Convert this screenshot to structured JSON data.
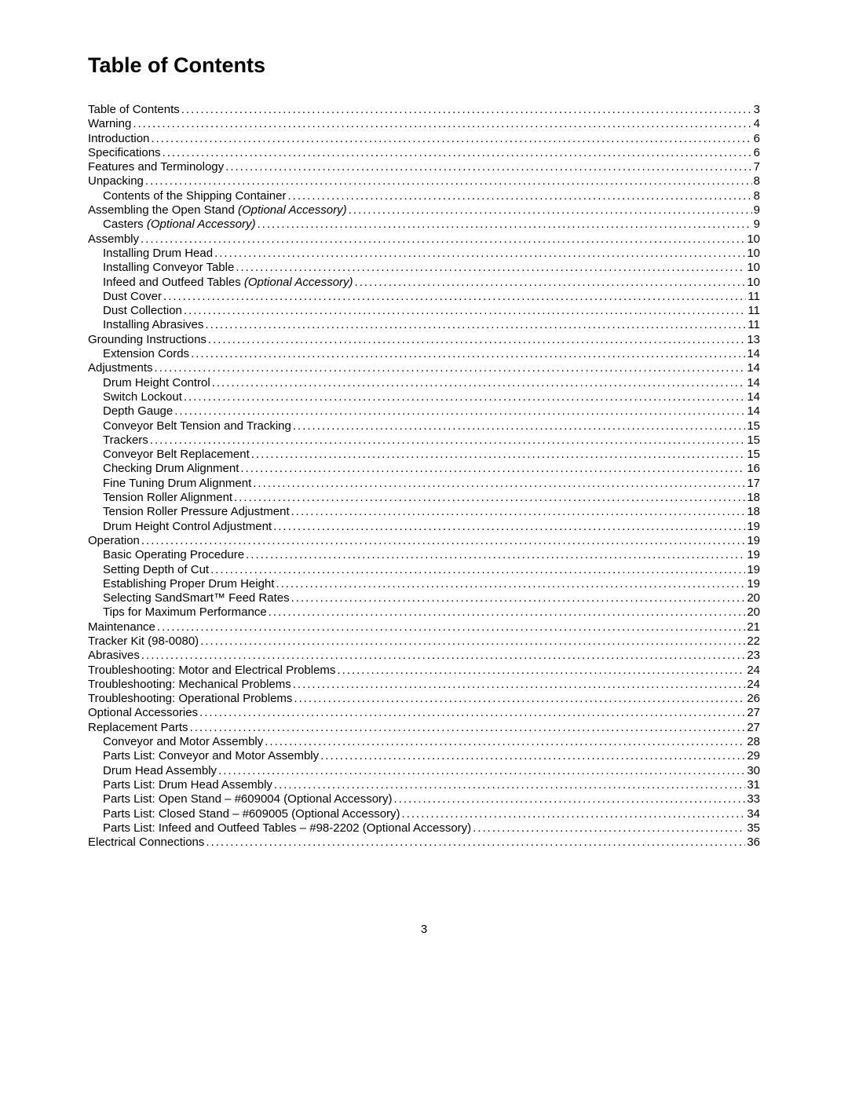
{
  "title": "Table of Contents",
  "pageNumber": "3",
  "entries": [
    {
      "label": "Table of Contents",
      "page": "3",
      "indent": 0
    },
    {
      "label": "Warning",
      "page": "4",
      "indent": 0
    },
    {
      "label": "Introduction",
      "page": "6",
      "indent": 0
    },
    {
      "label": "Specifications",
      "page": "6",
      "indent": 0
    },
    {
      "label": "Features and Terminology",
      "page": "7",
      "indent": 0
    },
    {
      "label": "Unpacking",
      "page": "8",
      "indent": 0
    },
    {
      "label": "Contents of the Shipping Container",
      "page": "8",
      "indent": 1
    },
    {
      "label": "Assembling the Open Stand",
      "italic": " (Optional Accessory)",
      "page": "9",
      "indent": 0
    },
    {
      "label": "Casters",
      "italic": " (Optional Accessory)",
      "page": "9",
      "indent": 1
    },
    {
      "label": "Assembly",
      "page": "10",
      "indent": 0
    },
    {
      "label": "Installing Drum Head",
      "page": "10",
      "indent": 1
    },
    {
      "label": "Installing Conveyor Table",
      "page": "10",
      "indent": 1
    },
    {
      "label": "Infeed and Outfeed Tables",
      "italic": " (Optional Accessory)",
      "page": "10",
      "indent": 1
    },
    {
      "label": "Dust Cover",
      "page": "11",
      "indent": 1
    },
    {
      "label": "Dust Collection",
      "page": "11",
      "indent": 1
    },
    {
      "label": "Installing Abrasives",
      "page": "11",
      "indent": 1
    },
    {
      "label": "Grounding Instructions",
      "page": "13",
      "indent": 0
    },
    {
      "label": "Extension Cords",
      "page": "14",
      "indent": 1
    },
    {
      "label": "Adjustments",
      "page": "14",
      "indent": 0
    },
    {
      "label": "Drum Height Control",
      "page": "14",
      "indent": 1
    },
    {
      "label": "Switch Lockout",
      "page": "14",
      "indent": 1
    },
    {
      "label": "Depth Gauge",
      "page": "14",
      "indent": 1
    },
    {
      "label": "Conveyor Belt Tension and Tracking",
      "page": "15",
      "indent": 1
    },
    {
      "label": "Trackers",
      "page": "15",
      "indent": 1
    },
    {
      "label": "Conveyor Belt Replacement",
      "page": "15",
      "indent": 1
    },
    {
      "label": "Checking Drum Alignment",
      "page": "16",
      "indent": 1
    },
    {
      "label": "Fine Tuning Drum Alignment",
      "page": "17",
      "indent": 1
    },
    {
      "label": "Tension Roller Alignment",
      "page": "18",
      "indent": 1
    },
    {
      "label": "Tension Roller Pressure Adjustment",
      "page": "18",
      "indent": 1
    },
    {
      "label": "Drum Height Control Adjustment",
      "page": "19",
      "indent": 1
    },
    {
      "label": "Operation",
      "page": "19",
      "indent": 0
    },
    {
      "label": "Basic Operating Procedure",
      "page": "19",
      "indent": 1
    },
    {
      "label": "Setting Depth of Cut",
      "page": "19",
      "indent": 1
    },
    {
      "label": "Establishing Proper Drum Height",
      "page": "19",
      "indent": 1
    },
    {
      "label": "Selecting SandSmart™ Feed Rates",
      "page": "20",
      "indent": 1
    },
    {
      "label": "Tips for Maximum Performance",
      "page": "20",
      "indent": 1
    },
    {
      "label": "Maintenance",
      "page": "21",
      "indent": 0
    },
    {
      "label": "Tracker Kit (98-0080)",
      "page": "22",
      "indent": 0
    },
    {
      "label": "Abrasives",
      "page": "23",
      "indent": 0
    },
    {
      "label": "Troubleshooting: Motor and Electrical Problems",
      "page": "24",
      "indent": 0
    },
    {
      "label": "Troubleshooting: Mechanical Problems",
      "page": "24",
      "indent": 0
    },
    {
      "label": "Troubleshooting: Operational Problems",
      "page": "26",
      "indent": 0
    },
    {
      "label": "Optional Accessories",
      "page": "27",
      "indent": 0
    },
    {
      "label": "Replacement Parts",
      "page": "27",
      "indent": 0
    },
    {
      "label": "Conveyor and Motor Assembly",
      "page": "28",
      "indent": 1
    },
    {
      "label": "Parts List: Conveyor and Motor Assembly",
      "page": "29",
      "indent": 1
    },
    {
      "label": "Drum Head Assembly",
      "page": "30",
      "indent": 1
    },
    {
      "label": "Parts List: Drum Head Assembly",
      "page": "31",
      "indent": 1
    },
    {
      "label": "Parts List: Open Stand – #609004 (Optional Accessory)",
      "page": "33",
      "indent": 1
    },
    {
      "label": "Parts List: Closed Stand – #609005 (Optional Accessory)",
      "page": "34",
      "indent": 1
    },
    {
      "label": "Parts List: Infeed and Outfeed Tables – #98-2202 (Optional Accessory)",
      "page": "35",
      "indent": 1
    },
    {
      "label": "Electrical Connections",
      "page": "36",
      "indent": 0
    }
  ]
}
